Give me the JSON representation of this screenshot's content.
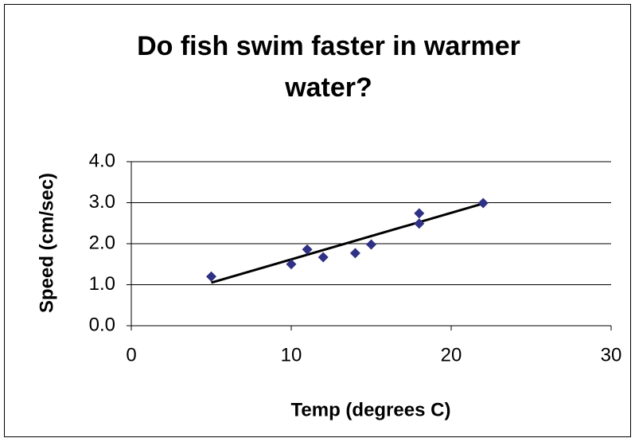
{
  "chart_data": {
    "type": "scatter",
    "title": "Do fish swim faster in warmer water?",
    "x_label": "Temp (degrees C)",
    "y_label": "Speed (cm/sec)",
    "x": [
      5,
      10,
      11,
      12,
      14,
      15,
      18,
      18,
      22
    ],
    "values": [
      1.2,
      1.5,
      1.86,
      1.67,
      1.77,
      1.98,
      2.74,
      2.49,
      2.99
    ],
    "color": "#2e3184",
    "trendline": {
      "x": [
        5,
        22
      ],
      "values": [
        1.05,
        2.98
      ],
      "color": "#000000"
    },
    "xlim": [
      0,
      30
    ],
    "xticks": [
      0,
      10,
      20,
      30
    ],
    "ylim": [
      0,
      4
    ],
    "yticks": [
      {
        "value": 0,
        "label": "0.0"
      },
      {
        "value": 1,
        "label": "1.0"
      },
      {
        "value": 2,
        "label": "2.0"
      },
      {
        "value": 3,
        "label": "3.0"
      },
      {
        "value": 4,
        "label": "4.0"
      }
    ],
    "grid": true
  }
}
